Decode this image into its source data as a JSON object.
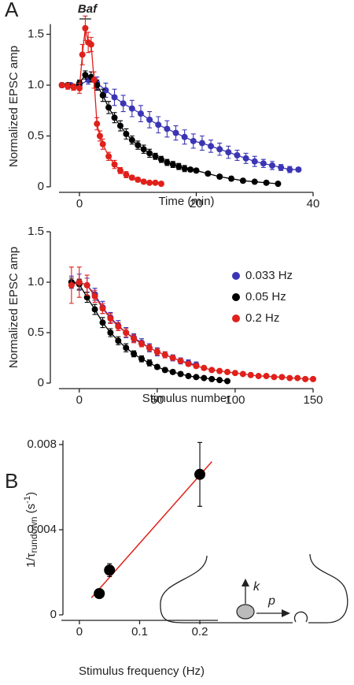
{
  "chart_data": [
    {
      "type": "line",
      "panel_label": "A",
      "annotation": "Baf",
      "annotation_range": [
        0,
        2
      ],
      "xlabel": "Time (min)",
      "ylabel": "Normalized EPSC amp",
      "xlim": [
        -3.5,
        40
      ],
      "xticks": [
        0,
        20,
        40
      ],
      "ylim": [
        0,
        1.6
      ],
      "yticks": [
        0,
        0.5,
        {
          "value": 1,
          "label": "1.0"
        },
        1.5
      ],
      "series": [
        {
          "color": "#3b35b5",
          "x": [
            -3,
            -1.5,
            0,
            1.5,
            3,
            4.5,
            6,
            7.5,
            9,
            10.5,
            12,
            13.5,
            15,
            16.5,
            18,
            19.5,
            21,
            22.5,
            24,
            25.5,
            27,
            28.5,
            30,
            31.5,
            33,
            34.5,
            36,
            37.5
          ],
          "values": [
            1.0,
            1.0,
            1.0,
            1.05,
            1.02,
            0.95,
            0.88,
            0.82,
            0.77,
            0.72,
            0.66,
            0.61,
            0.57,
            0.53,
            0.49,
            0.45,
            0.43,
            0.4,
            0.37,
            0.34,
            0.31,
            0.28,
            0.25,
            0.23,
            0.21,
            0.19,
            0.17,
            0.17
          ],
          "errors": [
            0.02,
            0.02,
            0.03,
            0.04,
            0.06,
            0.07,
            0.08,
            0.08,
            0.08,
            0.08,
            0.08,
            0.08,
            0.08,
            0.07,
            0.07,
            0.07,
            0.07,
            0.06,
            0.06,
            0.06,
            0.05,
            0.05,
            0.05,
            0.04,
            0.04,
            0.03,
            0.03,
            0.02
          ]
        },
        {
          "color": "#000000",
          "x": [
            -3,
            -2,
            -1,
            0,
            1,
            2,
            3,
            4,
            5,
            6,
            7,
            8,
            9,
            10,
            11,
            12,
            13,
            14,
            15,
            16,
            17,
            18,
            19,
            20,
            22,
            24,
            26,
            28,
            30,
            32,
            34
          ],
          "values": [
            1.0,
            1.0,
            0.98,
            1.02,
            1.1,
            1.08,
            1.0,
            0.9,
            0.78,
            0.68,
            0.6,
            0.52,
            0.46,
            0.41,
            0.37,
            0.33,
            0.3,
            0.27,
            0.24,
            0.22,
            0.2,
            0.18,
            0.17,
            0.16,
            0.13,
            0.1,
            0.08,
            0.06,
            0.05,
            0.04,
            0.03
          ],
          "errors": [
            0.02,
            0.02,
            0.03,
            0.03,
            0.04,
            0.05,
            0.05,
            0.06,
            0.06,
            0.05,
            0.05,
            0.05,
            0.04,
            0.04,
            0.04,
            0.04,
            0.03,
            0.03,
            0.03,
            0.03,
            0.03,
            0.03,
            0.02,
            0.02,
            0.02,
            0.02,
            0.02,
            0.01,
            0.01,
            0.01,
            0.01
          ]
        },
        {
          "color": "#e0201b",
          "x": [
            -3,
            -2,
            -1,
            0,
            0.5,
            1,
            1.5,
            2,
            2.5,
            3,
            3.5,
            4,
            5,
            6,
            7,
            8,
            9,
            10,
            11,
            12,
            13,
            14
          ],
          "values": [
            1.0,
            0.99,
            0.98,
            0.97,
            1.3,
            1.56,
            1.42,
            1.4,
            1.05,
            0.62,
            0.5,
            0.42,
            0.3,
            0.22,
            0.16,
            0.12,
            0.09,
            0.07,
            0.05,
            0.04,
            0.04,
            0.03
          ],
          "errors": [
            0.02,
            0.03,
            0.03,
            0.05,
            0.1,
            0.12,
            0.1,
            0.07,
            0.08,
            0.06,
            0.05,
            0.05,
            0.04,
            0.04,
            0.03,
            0.03,
            0.02,
            0.02,
            0.02,
            0.01,
            0.01,
            0.01
          ]
        }
      ]
    },
    {
      "type": "line",
      "xlabel": "Stimulus number",
      "ylabel": "Normalized EPSC amp",
      "xlim": [
        -13,
        150
      ],
      "xticks": [
        0,
        50,
        100,
        150
      ],
      "ylim": [
        0,
        1.5
      ],
      "yticks": [
        0,
        0.5,
        {
          "value": 1,
          "label": "1.0"
        },
        1.5
      ],
      "series": [
        {
          "name": "0.033 Hz",
          "color": "#3b35b5",
          "x": [
            -5,
            0,
            5,
            10,
            15,
            20,
            25,
            30,
            35,
            40,
            45,
            50,
            55,
            60,
            65,
            70,
            75
          ],
          "values": [
            1.0,
            1.0,
            0.97,
            0.88,
            0.75,
            0.65,
            0.57,
            0.5,
            0.45,
            0.4,
            0.35,
            0.31,
            0.28,
            0.25,
            0.22,
            0.2,
            0.18
          ],
          "errors": [
            0.06,
            0.08,
            0.07,
            0.06,
            0.06,
            0.05,
            0.05,
            0.05,
            0.04,
            0.04,
            0.04,
            0.04,
            0.03,
            0.03,
            0.03,
            0.03,
            0.03
          ]
        },
        {
          "name": "0.05 Hz",
          "color": "#000000",
          "x": [
            -5,
            0,
            5,
            10,
            15,
            20,
            25,
            30,
            35,
            40,
            45,
            50,
            55,
            60,
            65,
            70,
            75,
            80,
            85,
            90,
            95
          ],
          "values": [
            1.0,
            0.98,
            0.85,
            0.73,
            0.6,
            0.5,
            0.42,
            0.35,
            0.29,
            0.24,
            0.2,
            0.16,
            0.13,
            0.11,
            0.09,
            0.07,
            0.06,
            0.05,
            0.04,
            0.03,
            0.02
          ],
          "errors": [
            0.04,
            0.05,
            0.05,
            0.05,
            0.05,
            0.04,
            0.04,
            0.04,
            0.03,
            0.03,
            0.03,
            0.02,
            0.02,
            0.02,
            0.02,
            0.01,
            0.01,
            0.01,
            0.01,
            0.01,
            0.01
          ]
        },
        {
          "name": "0.2 Hz",
          "color": "#e0201b",
          "x": [
            -5,
            0,
            5,
            10,
            15,
            20,
            25,
            30,
            35,
            40,
            45,
            50,
            55,
            60,
            65,
            70,
            75,
            80,
            85,
            90,
            95,
            100,
            105,
            110,
            115,
            120,
            125,
            130,
            135,
            140,
            145,
            150
          ],
          "values": [
            0.97,
            1.0,
            0.97,
            0.86,
            0.74,
            0.64,
            0.56,
            0.5,
            0.44,
            0.39,
            0.35,
            0.31,
            0.28,
            0.25,
            0.22,
            0.19,
            0.17,
            0.15,
            0.13,
            0.12,
            0.11,
            0.1,
            0.09,
            0.08,
            0.07,
            0.07,
            0.06,
            0.06,
            0.05,
            0.05,
            0.04,
            0.04
          ],
          "errors": [
            0.18,
            0.15,
            0.1,
            0.06,
            0.05,
            0.05,
            0.04,
            0.04,
            0.04,
            0.03,
            0.03,
            0.03,
            0.03,
            0.02,
            0.02,
            0.02,
            0.02,
            0.02,
            0.01,
            0.01,
            0.01,
            0.01,
            0.01,
            0.01,
            0.01,
            0.01,
            0.01,
            0.01,
            0.01,
            0.01,
            0.01,
            0.01
          ]
        }
      ]
    },
    {
      "type": "scatter",
      "panel_label": "B",
      "xlabel": "Stimulus frequency (Hz)",
      "ylabel_parts": [
        "1/τ",
        "rundown",
        " (s",
        "-1",
        ")"
      ],
      "annotations": [
        "k",
        "p"
      ],
      "xlim": [
        -0.03,
        0.23
      ],
      "xticks": [
        0,
        0.1,
        0.2
      ],
      "ylim": [
        0,
        0.0082
      ],
      "yticks": [
        0,
        0.004,
        0.008
      ],
      "series": [
        {
          "color": "#000000",
          "x": [
            0.033,
            0.05,
            0.2
          ],
          "values": [
            0.001,
            0.0021,
            0.0066
          ],
          "errors": [
            0.0001,
            0.0003,
            0.0015
          ]
        }
      ],
      "fit": {
        "color": "#e0201b",
        "x": [
          0.02,
          0.22
        ],
        "values": [
          0.0008,
          0.0072
        ]
      }
    }
  ]
}
